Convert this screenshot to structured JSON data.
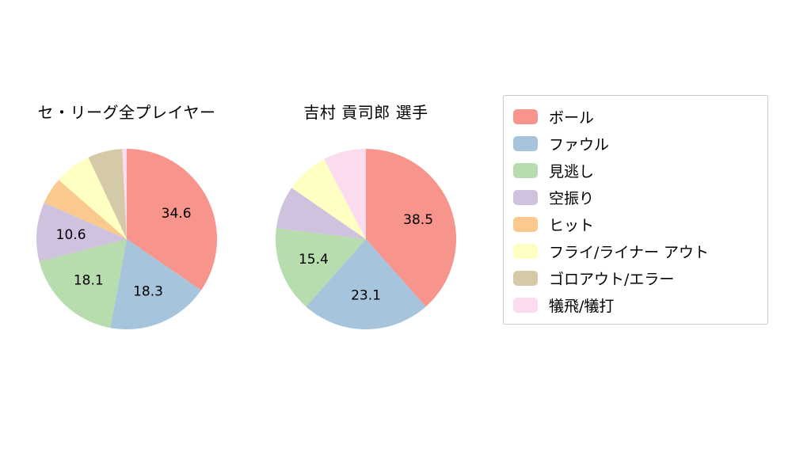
{
  "figure": {
    "background": "#ffffff"
  },
  "legend": {
    "items": [
      {
        "label": "ボール",
        "color": "#f7948c"
      },
      {
        "label": "ファウル",
        "color": "#a6c4dc"
      },
      {
        "label": "見逃し",
        "color": "#b7dcae"
      },
      {
        "label": "空振り",
        "color": "#cfc2df"
      },
      {
        "label": "ヒット",
        "color": "#fac98e"
      },
      {
        "label": "フライ/ライナー アウト",
        "color": "#ffffc3"
      },
      {
        "label": "ゴロアウト/エラー",
        "color": "#d5caa7"
      },
      {
        "label": "犠飛/犠打",
        "color": "#fbdcef"
      }
    ]
  },
  "chart_data": [
    {
      "type": "pie",
      "title": "セ・リーグ全プレイヤー",
      "categories": [
        "ボール",
        "ファウル",
        "見逃し",
        "空振り",
        "ヒット",
        "フライ/ライナー アウト",
        "ゴロアウト/エラー",
        "犠飛/犠打"
      ],
      "values": [
        34.6,
        18.3,
        18.1,
        10.6,
        4.8,
        6.6,
        6.2,
        0.8
      ],
      "labels_shown": [
        "34.6",
        "18.3",
        "18.1",
        "10.6",
        "",
        "",
        "",
        ""
      ],
      "colors": [
        "#f7948c",
        "#a6c4dc",
        "#b7dcae",
        "#cfc2df",
        "#fac98e",
        "#ffffc3",
        "#d5caa7",
        "#fbdcef"
      ],
      "start_angle_deg": 0,
      "direction": "clockwise",
      "legend_position": "right"
    },
    {
      "type": "pie",
      "title": "吉村 貢司郎  選手",
      "categories": [
        "ボール",
        "ファウル",
        "見逃し",
        "空振り",
        "ヒット",
        "フライ/ライナー アウト",
        "ゴロアウト/エラー",
        "犠飛/犠打"
      ],
      "values": [
        38.5,
        23.1,
        15.4,
        7.7,
        0,
        7.7,
        0,
        7.7
      ],
      "labels_shown": [
        "38.5",
        "23.1",
        "15.4",
        "",
        "",
        "",
        "",
        ""
      ],
      "colors": [
        "#f7948c",
        "#a6c4dc",
        "#b7dcae",
        "#cfc2df",
        "#fac98e",
        "#ffffc3",
        "#d5caa7",
        "#fbdcef"
      ],
      "start_angle_deg": 0,
      "direction": "clockwise",
      "legend_position": "right"
    }
  ]
}
